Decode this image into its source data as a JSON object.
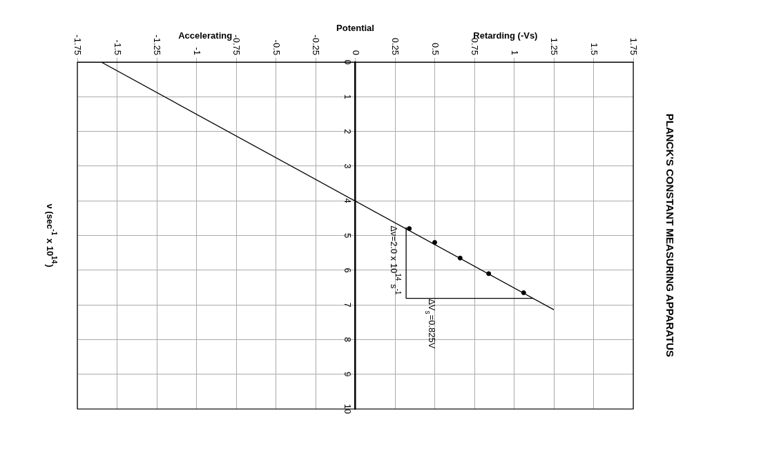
{
  "chart_data": {
    "type": "scatter",
    "title": "PLANCK'S CONSTANT MEASURING APPARATUS",
    "xlabel": "Potential",
    "ylabel": "ν (sec$^{-1}$ x 10$^{14}$)",
    "xlim": [
      -1.75,
      1.75
    ],
    "xticks": [
      -1.75,
      -1.5,
      -1.25,
      -1,
      -0.75,
      -0.5,
      -0.25,
      0,
      0.25,
      0.5,
      0.75,
      1,
      1.25,
      1.5,
      1.75
    ],
    "ylim": [
      10,
      0
    ],
    "yticks": [
      0,
      1,
      2,
      3,
      4,
      5,
      6,
      7,
      8,
      9,
      10
    ],
    "grid": true,
    "legend": false,
    "marker": "circle",
    "series": [
      {
        "color": "#000000",
        "x": [
          0.34,
          0.5,
          0.66,
          0.84,
          1.06
        ],
        "values": [
          4.8,
          5.2,
          5.65,
          6.1,
          6.65
        ]
      },
      {
        "type": "line",
        "color": "#000000",
        "marker": "none",
        "x": [
          -1.6,
          1.25
        ],
        "values": [
          0,
          7.14
        ]
      },
      {
        "type": "line",
        "color": "#000000",
        "marker": "none",
        "x": [
          0.32,
          0.32,
          1.12
        ],
        "values": [
          4.77,
          6.81,
          6.81
        ]
      }
    ],
    "annotations": [
      "Accelerating",
      "Retarding (-Vs)",
      "Δν=2.0 x 10$^{14}$ s$^{-1}$",
      "ΔV$_{s}$=0.825V"
    ]
  }
}
